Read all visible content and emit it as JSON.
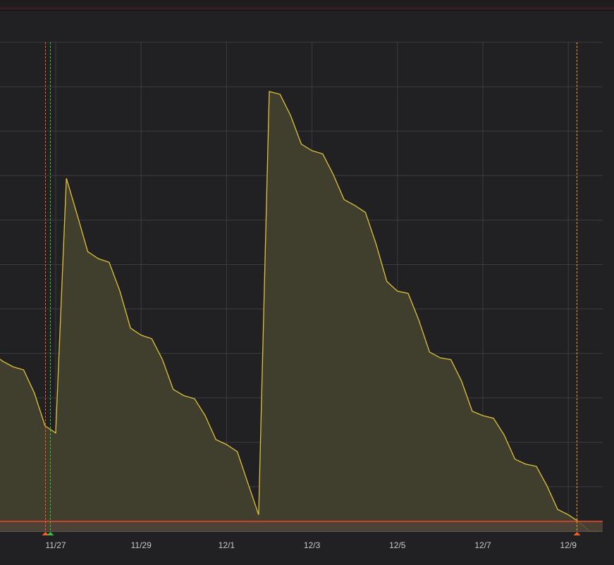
{
  "chart_data": {
    "type": "area",
    "title": "",
    "xlabel": "",
    "ylabel": "",
    "x_ticks": [
      "11/27",
      "11/29",
      "12/1",
      "12/3",
      "12/5",
      "12/7",
      "12/9"
    ],
    "ylim": [
      0,
      11
    ],
    "grid": true,
    "y_tick_labels_visible": false,
    "series": [
      {
        "color": "#e0c13b",
        "fill": "#403f2e",
        "x": [
          "11/25 12:00",
          "11/25 18:00",
          "11/26 00:00",
          "11/26 06:00",
          "11/26 12:00",
          "11/26 18:00",
          "11/27 00:00",
          "11/27 06:00",
          "11/27 12:00",
          "11/27 18:00",
          "11/28 00:00",
          "11/28 06:00",
          "11/28 12:00",
          "11/28 18:00",
          "11/29 00:00",
          "11/29 06:00",
          "11/29 12:00",
          "11/29 18:00",
          "11/30 00:00",
          "11/30 06:00",
          "11/30 12:00",
          "11/30 18:00",
          "12/1 00:00",
          "12/1 06:00",
          "12/1 12:00",
          "12/1 18:00",
          "12/2 00:00",
          "12/2 06:00",
          "12/2 12:00",
          "12/2 18:00",
          "12/3 00:00",
          "12/3 06:00",
          "12/3 12:00",
          "12/3 18:00",
          "12/4 00:00",
          "12/4 06:00",
          "12/4 12:00",
          "12/4 18:00",
          "12/5 00:00",
          "12/5 06:00",
          "12/5 12:00",
          "12/5 18:00",
          "12/6 00:00",
          "12/6 06:00",
          "12/6 12:00",
          "12/6 18:00",
          "12/7 00:00",
          "12/7 06:00",
          "12/7 12:00",
          "12/7 18:00",
          "12/8 00:00",
          "12/8 06:00",
          "12/8 12:00",
          "12/8 18:00",
          "12/9 00:00",
          "12/9 06:00",
          "12/9 12:00",
          "12/9 18:00"
        ],
        "values": [
          4.03,
          3.83,
          3.7,
          3.63,
          3.11,
          2.37,
          2.21,
          7.94,
          7.13,
          6.29,
          6.13,
          6.05,
          5.41,
          4.57,
          4.41,
          4.33,
          3.86,
          3.19,
          3.05,
          2.98,
          2.6,
          2.06,
          1.95,
          1.79,
          1.08,
          0.37,
          9.89,
          9.83,
          9.35,
          8.71,
          8.56,
          8.49,
          8.02,
          7.46,
          7.33,
          7.17,
          6.46,
          5.62,
          5.4,
          5.35,
          4.75,
          4.03,
          3.9,
          3.86,
          3.38,
          2.7,
          2.6,
          2.54,
          2.16,
          1.62,
          1.51,
          1.46,
          1.02,
          0.49,
          0.37,
          0.21,
          0,
          0
        ]
      }
    ],
    "threshold": {
      "value": 0.22,
      "color": "#c8462a",
      "region_fill": "#4f4336"
    },
    "annotations": [
      {
        "time": "11/26 18:00",
        "color": "#ff5a1f"
      },
      {
        "time": "11/26 21:00",
        "color": "#37c23a"
      },
      {
        "time": "12/9 04:40",
        "color": "#f2a418",
        "marker_color": "#ff5a1f"
      }
    ]
  }
}
